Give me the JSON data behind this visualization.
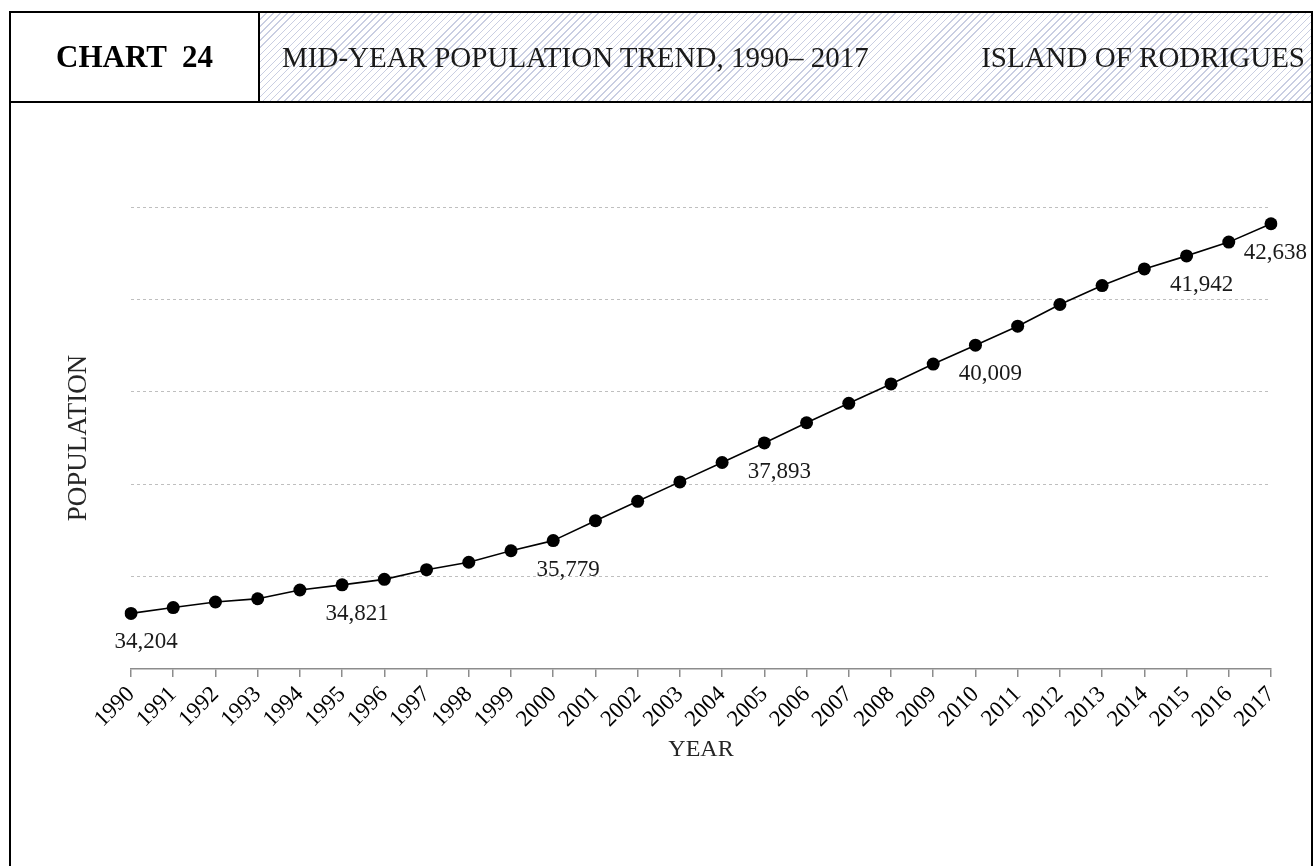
{
  "chart_data": {
    "type": "line",
    "title": "MID-YEAR POPULATION TREND, 1990– 2017",
    "subtitle": "ISLAND OF RODRIGUES",
    "annotations": [
      "CHART  24"
    ],
    "xlabel": "YEAR",
    "ylabel": "POPULATION",
    "categories": [
      "1990",
      "1991",
      "1992",
      "1993",
      "1994",
      "1995",
      "1996",
      "1997",
      "1998",
      "1999",
      "2000",
      "2001",
      "2002",
      "2003",
      "2004",
      "2005",
      "2006",
      "2007",
      "2008",
      "2009",
      "2010",
      "2011",
      "2012",
      "2013",
      "2014",
      "2015",
      "2016",
      "2017"
    ],
    "values": [
      34204,
      34330,
      34450,
      34520,
      34710,
      34821,
      34940,
      35150,
      35310,
      35560,
      35779,
      36210,
      36630,
      37050,
      37470,
      37893,
      38330,
      38750,
      39170,
      39600,
      40009,
      40420,
      40890,
      41300,
      41660,
      41942,
      42240,
      42638
    ],
    "value_labels": [
      "34,204",
      null,
      null,
      null,
      null,
      "34,821",
      null,
      null,
      null,
      null,
      "35,779",
      null,
      null,
      null,
      null,
      "37,893",
      null,
      null,
      null,
      null,
      "40,009",
      null,
      null,
      null,
      null,
      "41,942",
      null,
      "42,638"
    ],
    "color": "#000000",
    "marker": "circle",
    "line_style": "solid",
    "ylim": [
      33000,
      43000
    ],
    "yticks": [
      {
        "value": 35000,
        "label": null
      },
      {
        "value": 37000,
        "label": null
      },
      {
        "value": 39000,
        "label": null
      },
      {
        "value": 41000,
        "label": null
      },
      {
        "value": 43000,
        "label": null
      }
    ],
    "grid": "y",
    "tick_labels": "x"
  }
}
